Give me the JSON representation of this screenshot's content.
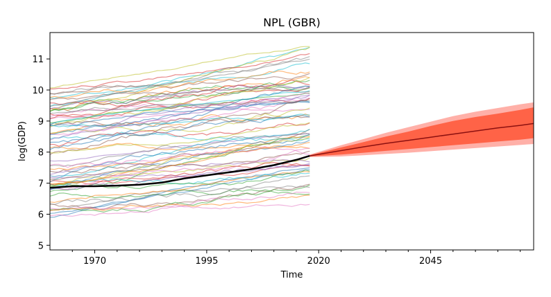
{
  "chart_data": {
    "type": "line",
    "title": "NPL (GBR)",
    "xlabel": "Time",
    "ylabel": "log(GDP)",
    "xlim": [
      1960,
      2068
    ],
    "ylim": [
      4.85,
      11.85
    ],
    "xticks": [
      1970,
      1995,
      2020,
      2045
    ],
    "yticks": [
      5,
      6,
      7,
      8,
      9,
      10,
      11
    ],
    "history_range": [
      1960,
      2018
    ],
    "peer_series_count": 72,
    "peer_series_colors": [
      "#1f77b4",
      "#ff7f0e",
      "#2ca02c",
      "#d62728",
      "#9467bd",
      "#8c564b",
      "#e377c2",
      "#7f7f7f",
      "#bcbd22",
      "#17becf"
    ],
    "highlight_series": {
      "color": "#000000",
      "x": [
        1960,
        1965,
        1970,
        1975,
        1980,
        1985,
        1990,
        1995,
        2000,
        2005,
        2010,
        2015,
        2018
      ],
      "y": [
        6.85,
        6.9,
        6.9,
        6.92,
        6.95,
        7.02,
        7.15,
        7.25,
        7.35,
        7.45,
        7.58,
        7.75,
        7.88
      ]
    },
    "forecast": {
      "x": [
        2018,
        2025,
        2030,
        2035,
        2040,
        2045,
        2050,
        2055,
        2060,
        2065,
        2068
      ],
      "median": [
        7.88,
        8.05,
        8.17,
        8.28,
        8.38,
        8.48,
        8.58,
        8.68,
        8.78,
        8.86,
        8.92
      ],
      "inner_lower": [
        7.86,
        7.92,
        7.98,
        8.04,
        8.1,
        8.16,
        8.22,
        8.28,
        8.34,
        8.4,
        8.45
      ],
      "inner_upper": [
        7.9,
        8.15,
        8.32,
        8.5,
        8.66,
        8.84,
        9.0,
        9.13,
        9.24,
        9.36,
        9.44
      ],
      "outer_lower": [
        7.84,
        7.86,
        7.9,
        7.94,
        7.98,
        8.03,
        8.08,
        8.13,
        8.18,
        8.23,
        8.26
      ],
      "outer_upper": [
        7.92,
        8.22,
        8.42,
        8.62,
        8.8,
        8.98,
        9.16,
        9.3,
        9.42,
        9.54,
        9.6
      ],
      "median_color": "#8b1010",
      "inner_band_color": "#ff6347",
      "outer_band_color": "#ffb0a8"
    }
  }
}
